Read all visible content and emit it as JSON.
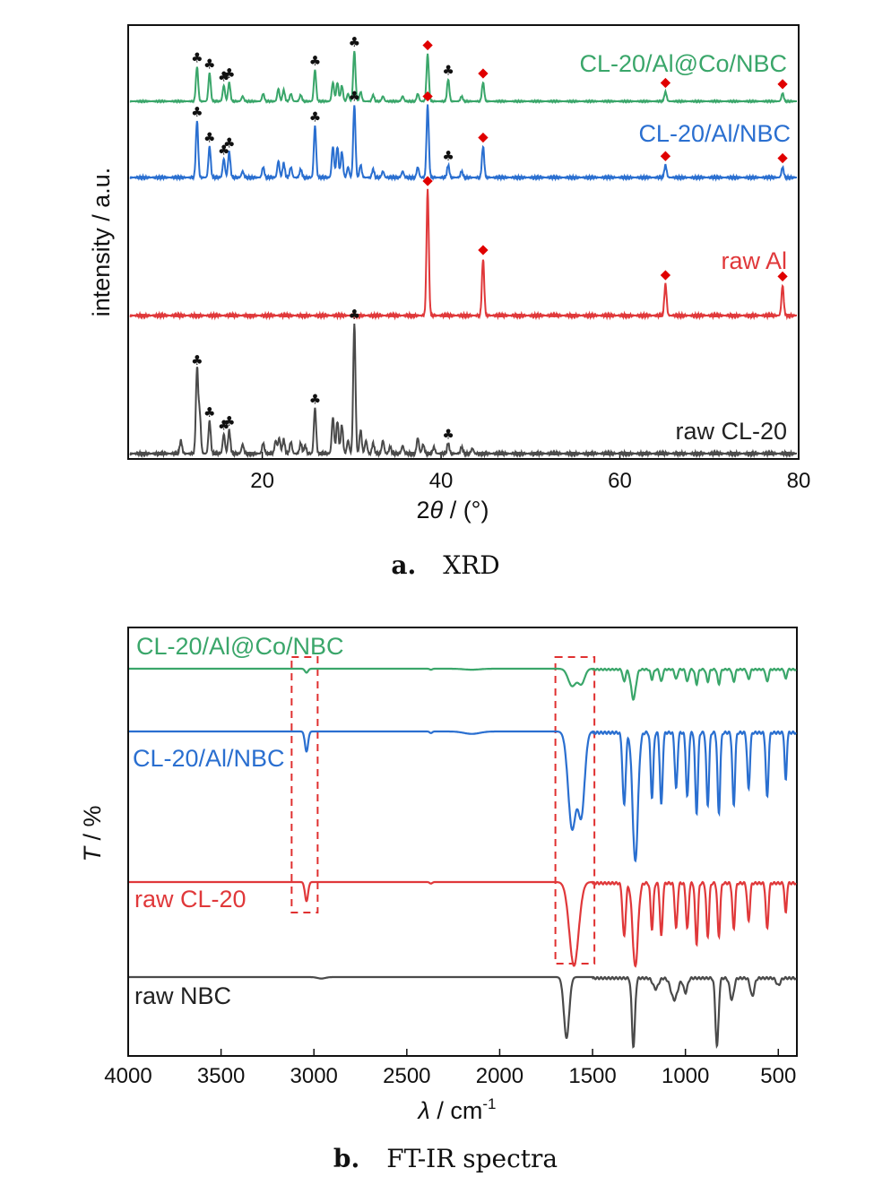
{
  "colors": {
    "green": "#3aa66a",
    "blue": "#2a6fd0",
    "red": "#e0383a",
    "gray": "#4a4a4a",
    "diamond": "#e00000",
    "box": "#e03030"
  },
  "captions": {
    "a_letter": "a.",
    "a_text": "XRD",
    "b_letter": "b.",
    "b_text": "FT-IR spectra"
  },
  "chart_data": [
    {
      "type": "line",
      "name": "xrd",
      "xlabel_prefix": "2",
      "xlabel_symbol": "θ",
      "xlabel_suffix": " / (°)",
      "ylabel": "intensity / a.u.",
      "xlim": [
        5,
        80
      ],
      "xticks": [
        20,
        40,
        60,
        80
      ],
      "xtick_labels": [
        "20",
        "40",
        "60",
        "80"
      ],
      "series": [
        {
          "name": "CL-20/Al@Co/NBC",
          "color": "green",
          "peaks": [
            [
              12.7,
              0.55
            ],
            [
              14.1,
              0.45
            ],
            [
              15.7,
              0.25
            ],
            [
              16.3,
              0.3
            ],
            [
              17.8,
              0.08
            ],
            [
              20.1,
              0.12
            ],
            [
              21.8,
              0.2
            ],
            [
              22.4,
              0.18
            ],
            [
              23.2,
              0.12
            ],
            [
              24.3,
              0.1
            ],
            [
              25.9,
              0.5
            ],
            [
              27.9,
              0.3
            ],
            [
              28.4,
              0.3
            ],
            [
              28.9,
              0.25
            ],
            [
              29.6,
              0.12
            ],
            [
              30.3,
              0.8
            ],
            [
              31.0,
              0.15
            ],
            [
              32.4,
              0.1
            ],
            [
              33.5,
              0.08
            ],
            [
              35.7,
              0.08
            ],
            [
              37.4,
              0.12
            ],
            [
              38.5,
              0.75
            ],
            [
              40.8,
              0.35
            ],
            [
              42.3,
              0.08
            ],
            [
              44.7,
              0.3
            ],
            [
              65.1,
              0.15
            ],
            [
              78.2,
              0.13
            ]
          ],
          "markers": [
            {
              "x": 12.7,
              "sym": "club"
            },
            {
              "x": 14.1,
              "sym": "club"
            },
            {
              "x": 15.7,
              "sym": "club"
            },
            {
              "x": 16.3,
              "sym": "club"
            },
            {
              "x": 25.9,
              "sym": "club"
            },
            {
              "x": 30.3,
              "sym": "club"
            },
            {
              "x": 38.5,
              "sym": "diamond"
            },
            {
              "x": 40.8,
              "sym": "club"
            },
            {
              "x": 44.7,
              "sym": "diamond"
            },
            {
              "x": 65.1,
              "sym": "diamond"
            },
            {
              "x": 78.2,
              "sym": "diamond"
            }
          ]
        },
        {
          "name": "CL-20/Al/NBC",
          "color": "blue",
          "peaks": [
            [
              12.7,
              0.55
            ],
            [
              14.1,
              0.3
            ],
            [
              15.7,
              0.18
            ],
            [
              16.3,
              0.25
            ],
            [
              17.8,
              0.06
            ],
            [
              20.1,
              0.1
            ],
            [
              21.8,
              0.16
            ],
            [
              22.4,
              0.14
            ],
            [
              23.2,
              0.1
            ],
            [
              24.3,
              0.08
            ],
            [
              25.9,
              0.5
            ],
            [
              27.9,
              0.3
            ],
            [
              28.4,
              0.3
            ],
            [
              28.9,
              0.25
            ],
            [
              29.6,
              0.1
            ],
            [
              30.3,
              0.7
            ],
            [
              31.0,
              0.12
            ],
            [
              32.4,
              0.08
            ],
            [
              33.5,
              0.06
            ],
            [
              35.7,
              0.06
            ],
            [
              37.4,
              0.1
            ],
            [
              38.5,
              0.7
            ],
            [
              40.8,
              0.12
            ],
            [
              42.3,
              0.06
            ],
            [
              44.7,
              0.3
            ],
            [
              65.1,
              0.12
            ],
            [
              78.2,
              0.1
            ]
          ],
          "markers": [
            {
              "x": 12.7,
              "sym": "club"
            },
            {
              "x": 14.1,
              "sym": "club"
            },
            {
              "x": 15.7,
              "sym": "club"
            },
            {
              "x": 16.3,
              "sym": "club"
            },
            {
              "x": 25.9,
              "sym": "club"
            },
            {
              "x": 30.3,
              "sym": "club"
            },
            {
              "x": 38.5,
              "sym": "diamond"
            },
            {
              "x": 40.8,
              "sym": "club"
            },
            {
              "x": 44.7,
              "sym": "diamond"
            },
            {
              "x": 65.1,
              "sym": "diamond"
            },
            {
              "x": 78.2,
              "sym": "diamond"
            }
          ]
        },
        {
          "name": "raw Al",
          "color": "red",
          "peaks": [
            [
              38.5,
              1.0
            ],
            [
              44.7,
              0.45
            ],
            [
              65.1,
              0.25
            ],
            [
              78.2,
              0.24
            ]
          ],
          "markers": [
            {
              "x": 38.5,
              "sym": "diamond"
            },
            {
              "x": 44.7,
              "sym": "diamond"
            },
            {
              "x": 65.1,
              "sym": "diamond"
            },
            {
              "x": 78.2,
              "sym": "diamond"
            }
          ]
        },
        {
          "name": "raw CL-20",
          "color": "gray",
          "peaks": [
            [
              10.9,
              0.1
            ],
            [
              12.7,
              0.65
            ],
            [
              13.0,
              0.3
            ],
            [
              14.1,
              0.25
            ],
            [
              15.7,
              0.15
            ],
            [
              16.3,
              0.18
            ],
            [
              17.8,
              0.07
            ],
            [
              20.1,
              0.08
            ],
            [
              21.5,
              0.1
            ],
            [
              21.9,
              0.12
            ],
            [
              22.4,
              0.11
            ],
            [
              23.2,
              0.09
            ],
            [
              24.3,
              0.08
            ],
            [
              24.8,
              0.06
            ],
            [
              25.9,
              0.35
            ],
            [
              27.9,
              0.28
            ],
            [
              28.4,
              0.25
            ],
            [
              28.9,
              0.22
            ],
            [
              29.6,
              0.1
            ],
            [
              30.3,
              1.0
            ],
            [
              31.0,
              0.18
            ],
            [
              31.6,
              0.1
            ],
            [
              32.4,
              0.08
            ],
            [
              33.5,
              0.1
            ],
            [
              34.3,
              0.05
            ],
            [
              35.7,
              0.06
            ],
            [
              37.4,
              0.12
            ],
            [
              38.0,
              0.07
            ],
            [
              39.2,
              0.05
            ],
            [
              40.8,
              0.08
            ],
            [
              42.3,
              0.05
            ],
            [
              43.5,
              0.04
            ]
          ],
          "markers": [
            {
              "x": 12.7,
              "sym": "club"
            },
            {
              "x": 14.1,
              "sym": "club"
            },
            {
              "x": 15.7,
              "sym": "club"
            },
            {
              "x": 16.3,
              "sym": "club"
            },
            {
              "x": 25.9,
              "sym": "club"
            },
            {
              "x": 30.3,
              "sym": "club"
            },
            {
              "x": 40.8,
              "sym": "club"
            }
          ]
        }
      ]
    },
    {
      "type": "line",
      "name": "ftir",
      "xlabel_symbol": "λ",
      "xlabel_suffix": " / cm",
      "xlabel_sup": "-1",
      "ylabel_symbol": "T",
      "ylabel_suffix": " / %",
      "xlim": [
        4000,
        400
      ],
      "xticks": [
        4000,
        3500,
        3000,
        2500,
        2000,
        1500,
        1000,
        500
      ],
      "xtick_labels": [
        "4000",
        "3500",
        "3000",
        "2500",
        "2000",
        "1500",
        "1000",
        "500"
      ],
      "highlight_boxes": [
        [
          3120,
          2980
        ],
        [
          1700,
          1490
        ]
      ],
      "series": [
        {
          "name": "CL-20/Al@Co/NBC",
          "color": "green",
          "bands": [
            [
              3040,
              0.08,
              12
            ],
            [
              2370,
              0.02,
              10
            ],
            [
              2150,
              0.02,
              60
            ],
            [
              1610,
              0.35,
              30
            ],
            [
              1560,
              0.3,
              25
            ],
            [
              1330,
              0.25,
              10
            ],
            [
              1280,
              0.6,
              18
            ],
            [
              1180,
              0.2,
              10
            ],
            [
              1130,
              0.25,
              10
            ],
            [
              1050,
              0.2,
              10
            ],
            [
              990,
              0.25,
              10
            ],
            [
              940,
              0.3,
              10
            ],
            [
              880,
              0.25,
              10
            ],
            [
              820,
              0.3,
              10
            ],
            [
              740,
              0.25,
              10
            ],
            [
              660,
              0.2,
              10
            ],
            [
              560,
              0.25,
              10
            ],
            [
              460,
              0.2,
              8
            ]
          ]
        },
        {
          "name": "CL-20/Al/NBC",
          "color": "blue",
          "bands": [
            [
              3040,
              0.25,
              12
            ],
            [
              2370,
              0.02,
              10
            ],
            [
              2150,
              0.03,
              60
            ],
            [
              1610,
              1.2,
              30
            ],
            [
              1560,
              1.0,
              25
            ],
            [
              1330,
              0.9,
              12
            ],
            [
              1270,
              1.6,
              20
            ],
            [
              1180,
              0.8,
              10
            ],
            [
              1130,
              0.9,
              10
            ],
            [
              1050,
              0.7,
              10
            ],
            [
              990,
              0.8,
              10
            ],
            [
              940,
              1.0,
              10
            ],
            [
              880,
              0.9,
              10
            ],
            [
              820,
              1.0,
              10
            ],
            [
              740,
              0.9,
              10
            ],
            [
              660,
              0.7,
              10
            ],
            [
              560,
              0.8,
              10
            ],
            [
              460,
              0.6,
              8
            ]
          ]
        },
        {
          "name": "raw CL-20",
          "color": "red",
          "bands": [
            [
              3040,
              0.25,
              12
            ],
            [
              2370,
              0.02,
              10
            ],
            [
              1600,
              1.1,
              35
            ],
            [
              1330,
              0.7,
              12
            ],
            [
              1270,
              1.1,
              20
            ],
            [
              1180,
              0.6,
              10
            ],
            [
              1130,
              0.7,
              10
            ],
            [
              1050,
              0.6,
              10
            ],
            [
              990,
              0.6,
              10
            ],
            [
              940,
              0.8,
              10
            ],
            [
              880,
              0.7,
              10
            ],
            [
              820,
              0.7,
              10
            ],
            [
              740,
              0.6,
              10
            ],
            [
              660,
              0.5,
              10
            ],
            [
              560,
              0.6,
              10
            ],
            [
              460,
              0.4,
              8
            ]
          ]
        },
        {
          "name": "raw NBC",
          "color": "gray",
          "bands": [
            [
              2960,
              0.02,
              30
            ],
            [
              1640,
              0.85,
              20
            ],
            [
              1280,
              0.95,
              12
            ],
            [
              1160,
              0.15,
              20
            ],
            [
              1060,
              0.3,
              25
            ],
            [
              1000,
              0.2,
              15
            ],
            [
              830,
              0.95,
              12
            ],
            [
              750,
              0.3,
              15
            ],
            [
              640,
              0.25,
              15
            ],
            [
              500,
              0.1,
              15
            ]
          ]
        }
      ]
    }
  ]
}
